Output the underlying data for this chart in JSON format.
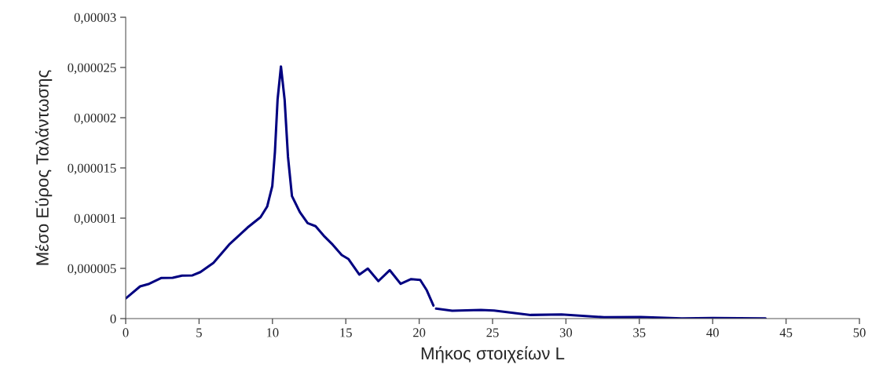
{
  "chart_data": {
    "type": "line",
    "xlabel": "Μήκος στοιχείων L",
    "ylabel": "Μέσο Εύρος Ταλάντωσης",
    "series": [
      {
        "color": "#000080",
        "x": [
          0,
          0.98,
          1.6,
          2.41,
          3.2,
          3.84,
          4.55,
          5.09,
          5.98,
          7.05,
          8.3,
          9.19,
          9.64,
          9.99,
          10.17,
          10.35,
          10.58,
          10.83,
          11.06,
          11.33,
          11.87,
          12.4,
          12.94,
          13.56,
          14.1,
          14.72,
          15.17,
          15.92,
          16.5,
          17.22,
          17.99,
          18.74,
          19.45,
          20.07,
          20.52,
          20.97,
          21.05,
          21.15,
          22.25,
          24.2,
          25.1,
          27.6,
          29.7,
          32.6,
          35.1,
          37.9,
          40.0,
          43.6
        ],
        "values": [
          2e-06,
          3.2e-06,
          3.46e-06,
          4.04e-06,
          4.06e-06,
          4.27e-06,
          4.3e-06,
          4.63e-06,
          5.55e-06,
          7.37e-06,
          9.06e-06,
          1.01e-05,
          1.115e-05,
          1.32e-05,
          1.66e-05,
          2.18e-05,
          2.51e-05,
          2.18e-05,
          1.61e-05,
          1.22e-05,
          1.06e-05,
          9.5e-06,
          9.2e-06,
          8.15e-06,
          7.37e-06,
          6.33e-06,
          5.94e-06,
          4.38e-06,
          4.98e-06,
          3.73e-06,
          4.82e-06,
          3.46e-06,
          3.93e-06,
          3.85e-06,
          2.81e-06,
          1.3e-06,
          null,
          9.9e-07,
          7.8e-07,
          8.6e-07,
          8e-07,
          3.6e-07,
          4.1e-07,
          1.3e-07,
          1.6e-07,
          2e-08,
          5e-08,
          1e-08
        ]
      }
    ],
    "xlim": [
      0,
      50
    ],
    "xticks": [
      0,
      5,
      10,
      15,
      20,
      25,
      30,
      35,
      40,
      45,
      50
    ],
    "ylim": [
      0,
      3e-05
    ],
    "yticks": [
      {
        "value": 0,
        "label": "0"
      },
      {
        "value": 5e-06,
        "label": "0,000005"
      },
      {
        "value": 1e-05,
        "label": "0,00001"
      },
      {
        "value": 1.5e-05,
        "label": "0,000015"
      },
      {
        "value": 2e-05,
        "label": "0,00002"
      },
      {
        "value": 2.5e-05,
        "label": "0,000025"
      },
      {
        "value": 3e-05,
        "label": "0,00003"
      }
    ],
    "grid": false,
    "legend": false,
    "marker": "none",
    "line_style": "solid"
  }
}
